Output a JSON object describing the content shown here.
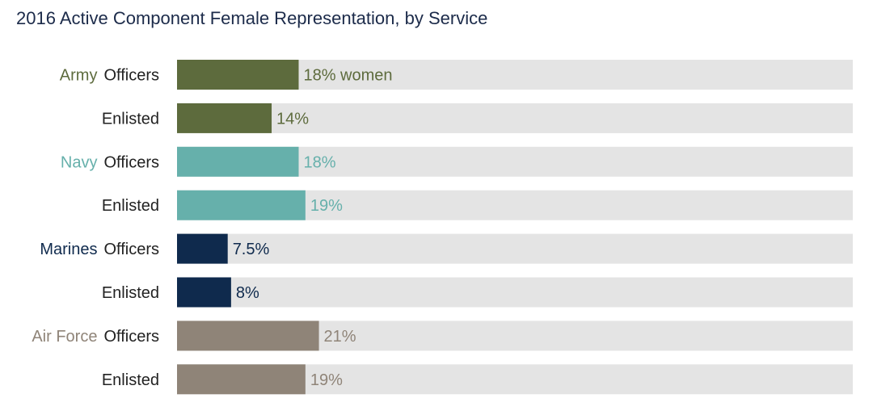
{
  "chart_data": {
    "type": "bar",
    "orientation": "horizontal",
    "title": "2016 Active Component Female Representation, by Service",
    "xlim": [
      0,
      100
    ],
    "value_unit": "%",
    "grid": false,
    "legend": "none",
    "groups": [
      {
        "name": "Army",
        "color": "#5d6b3d",
        "rows": [
          {
            "label": "Officers",
            "value": 18,
            "value_label": "18% women"
          },
          {
            "label": "Enlisted",
            "value": 14,
            "value_label": "14%"
          }
        ]
      },
      {
        "name": "Navy",
        "color": "#66b0ab",
        "rows": [
          {
            "label": "Officers",
            "value": 18,
            "value_label": "18%"
          },
          {
            "label": "Enlisted",
            "value": 19,
            "value_label": "19%"
          }
        ]
      },
      {
        "name": "Marines",
        "color": "#0f2a4d",
        "rows": [
          {
            "label": "Officers",
            "value": 7.5,
            "value_label": "7.5%"
          },
          {
            "label": "Enlisted",
            "value": 8,
            "value_label": "8%"
          }
        ]
      },
      {
        "name": "Air Force",
        "color": "#8f8478",
        "rows": [
          {
            "label": "Officers",
            "value": 21,
            "value_label": "21%"
          },
          {
            "label": "Enlisted",
            "value": 19,
            "value_label": "19%"
          }
        ]
      }
    ],
    "track_color": "#e4e4e4"
  }
}
